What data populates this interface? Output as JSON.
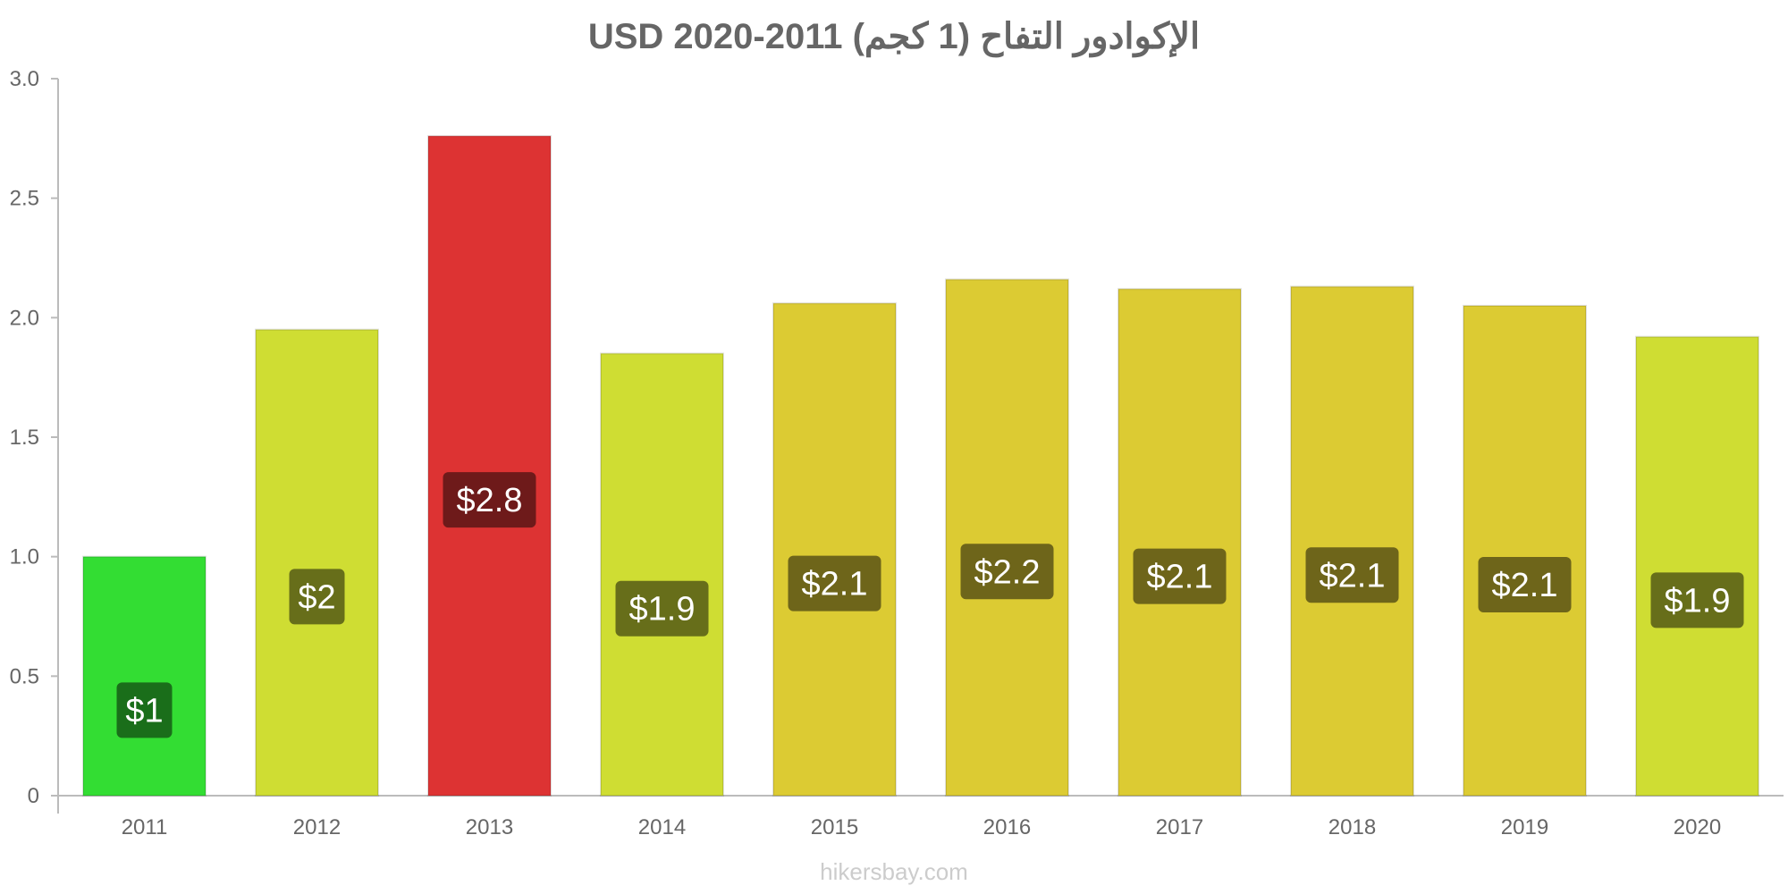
{
  "chart_data": {
    "type": "bar",
    "title": "الإكوادور التفاح (1 كجم) USD 2020-2011",
    "categories": [
      "2011",
      "2012",
      "2013",
      "2014",
      "2015",
      "2016",
      "2017",
      "2018",
      "2019",
      "2020"
    ],
    "values": [
      1.0,
      1.95,
      2.76,
      1.85,
      2.06,
      2.16,
      2.12,
      2.13,
      2.05,
      1.92
    ],
    "data_labels": [
      "$1",
      "$2",
      "$2.8",
      "$1.9",
      "$2.1",
      "$2.2",
      "$2.1",
      "$2.1",
      "$2.1",
      "$1.9"
    ],
    "bar_colors": [
      "#33dd33",
      "#cfdd33",
      "#dd3333",
      "#cfdd33",
      "#dccb33",
      "#dccb33",
      "#dccb33",
      "#dccb33",
      "#dccb33",
      "#cfdd33"
    ],
    "label_bg_colors": [
      "#1a6e1a",
      "#676e1a",
      "#6e1a1a",
      "#676e1a",
      "#6e651a",
      "#6e651a",
      "#6e651a",
      "#6e651a",
      "#6e651a",
      "#676e1a"
    ],
    "ylim": [
      0,
      3.0
    ],
    "yticks": [
      0,
      0.5,
      1.0,
      1.5,
      2.0,
      2.5,
      3.0
    ],
    "ytick_labels": [
      "0",
      "0.5",
      "1.0",
      "1.5",
      "2.0",
      "2.5",
      "3.0"
    ],
    "xlabel": "",
    "ylabel": "",
    "grid": false,
    "legend": "none"
  },
  "watermark": "hikersbay.com"
}
